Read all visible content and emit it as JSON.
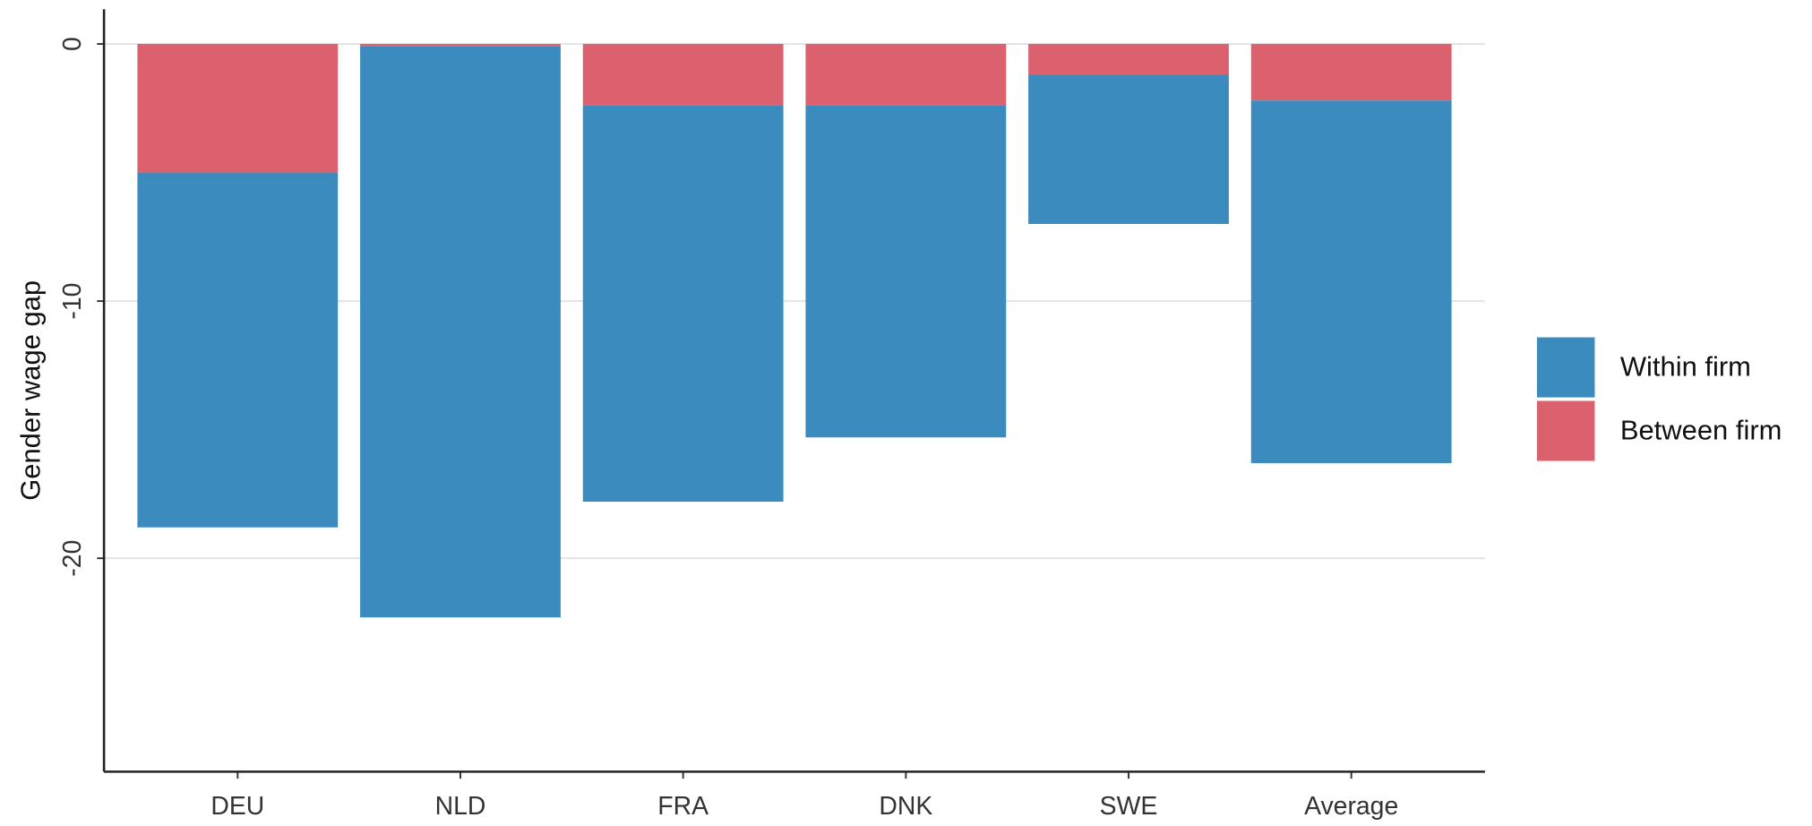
{
  "chart_data": {
    "type": "bar",
    "stacked": true,
    "ylabel": "Gender wage gap",
    "categories": [
      "DEU",
      "NLD",
      "FRA",
      "DNK",
      "SWE",
      "Average"
    ],
    "series": [
      {
        "name": "Within firm",
        "color": "#3b8bbf",
        "values": [
          -13.8,
          -22.2,
          -15.4,
          -12.9,
          -5.8,
          -14.1
        ]
      },
      {
        "name": "Between firm",
        "color": "#dc616f",
        "values": [
          -5.0,
          -0.1,
          -2.4,
          -2.4,
          -1.2,
          -2.2
        ]
      }
    ],
    "ylim": [
      -28.3,
      1.35
    ],
    "yticks": [
      0,
      -10,
      -20
    ],
    "grid": true
  }
}
